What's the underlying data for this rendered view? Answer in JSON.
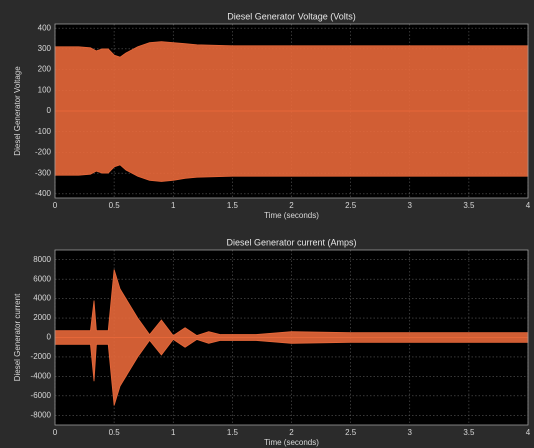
{
  "chart_data": [
    {
      "type": "band",
      "title": "Diesel Generator Voltage (Volts)",
      "x_label": "Time (seconds)",
      "y_label": "Diesel Generator Voltage",
      "color": "#e8683a",
      "grid": true,
      "x": [
        0,
        0.1,
        0.2,
        0.3,
        0.35,
        0.4,
        0.45,
        0.5,
        0.55,
        0.6,
        0.7,
        0.8,
        0.9,
        1.0,
        1.1,
        1.2,
        1.5,
        2,
        2.5,
        3,
        3.5,
        4
      ],
      "upper": [
        310,
        310,
        310,
        305,
        290,
        300,
        300,
        270,
        260,
        280,
        310,
        330,
        335,
        330,
        325,
        320,
        315,
        315,
        315,
        315,
        315,
        315
      ],
      "lower": [
        -310,
        -310,
        -310,
        -305,
        -290,
        -300,
        -300,
        -270,
        -260,
        -285,
        -315,
        -335,
        -340,
        -335,
        -325,
        -320,
        -315,
        -315,
        -315,
        -315,
        -315,
        -315
      ],
      "xlim": [
        0,
        4
      ],
      "xticks": [
        0,
        0.5,
        1,
        1.5,
        2,
        2.5,
        3,
        3.5,
        4
      ],
      "ylim": [
        -420,
        420
      ],
      "yticks": [
        -400,
        -300,
        -200,
        -100,
        0,
        100,
        200,
        300,
        400
      ]
    },
    {
      "type": "band",
      "title": "Diesel Generator current (Amps)",
      "x_label": "Time (seconds)",
      "y_label": "Diesel Generator current",
      "color": "#e8683a",
      "grid": true,
      "x": [
        0,
        0.3,
        0.33,
        0.35,
        0.45,
        0.5,
        0.55,
        0.6,
        0.7,
        0.8,
        0.9,
        1.0,
        1.1,
        1.2,
        1.3,
        1.4,
        1.5,
        1.7,
        2,
        2.5,
        3,
        3.5,
        4
      ],
      "upper": [
        700,
        700,
        3800,
        700,
        700,
        7000,
        5000,
        4000,
        2000,
        300,
        1800,
        200,
        1000,
        200,
        600,
        300,
        300,
        300,
        600,
        500,
        500,
        500,
        500
      ],
      "lower": [
        -700,
        -700,
        -4500,
        -700,
        -700,
        -7000,
        -5000,
        -4000,
        -2000,
        -300,
        -1800,
        -200,
        -1000,
        -200,
        -600,
        -300,
        -300,
        -300,
        -600,
        -500,
        -500,
        -500,
        -500
      ],
      "xlim": [
        0,
        4
      ],
      "xticks": [
        0,
        0.5,
        1,
        1.5,
        2,
        2.5,
        3,
        3.5,
        4
      ],
      "ylim": [
        -9000,
        9000
      ],
      "yticks": [
        -8000,
        -6000,
        -4000,
        -2000,
        0,
        2000,
        4000,
        6000,
        8000
      ]
    }
  ]
}
